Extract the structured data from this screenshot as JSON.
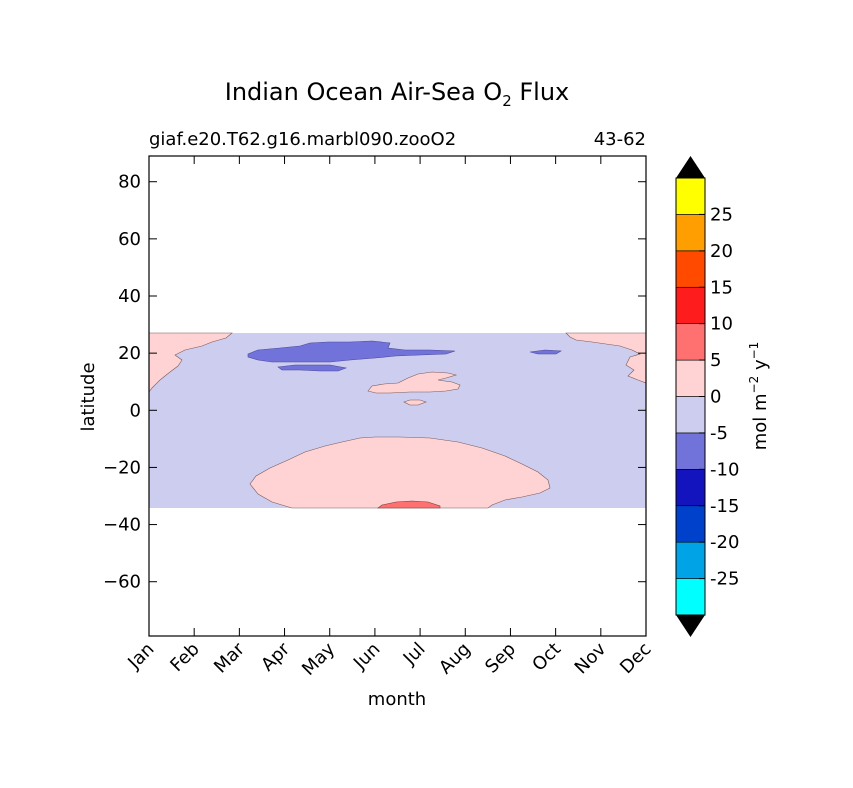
{
  "chart_data": {
    "type": "contourf",
    "title_main": "Indian Ocean Air-Sea O",
    "title_sub": "2",
    "title_end": " Flux",
    "subtitle_left": "giaf.e20.T62.g16.marbl090.zooO2",
    "subtitle_right": "43-62",
    "xlabel": "month",
    "ylabel": "latitude",
    "x_ticks": [
      "Jan",
      "Feb",
      "Mar",
      "Apr",
      "May",
      "Jun",
      "Jul",
      "Aug",
      "Sep",
      "Oct",
      "Nov",
      "Dec"
    ],
    "y_ticks": [
      80,
      60,
      40,
      20,
      0,
      -20,
      -40,
      -60
    ],
    "y_tick_labels": [
      "80",
      "60",
      "40",
      "20",
      "0",
      "−20",
      "−40",
      "−60"
    ],
    "ylim": [
      -79,
      89
    ],
    "xlim": [
      0,
      11
    ],
    "data_lat_range": [
      -34,
      27.5
    ],
    "colorbar": {
      "label_main": "mol m",
      "label_exp1": "−2",
      "label_mid": "  y",
      "label_exp2": "−1",
      "levels": [
        -30,
        -25,
        -20,
        -15,
        -10,
        -5,
        0,
        5,
        10,
        15,
        20,
        25,
        30
      ],
      "tick_values": [
        -25,
        -20,
        -15,
        -10,
        -5,
        0,
        5,
        10,
        15,
        20,
        25
      ],
      "tick_labels": [
        "-25",
        "-20",
        "-15",
        "-10",
        "-5",
        "0",
        "5",
        "10",
        "15",
        "20",
        "25"
      ],
      "colors": [
        "#00ffff",
        "#00a3e6",
        "#0041cc",
        "#1414be",
        "#7272db",
        "#cdcdef",
        "#ffd3d3",
        "#ff7070",
        "#ff1c1c",
        "#ff4a00",
        "#ff9e00",
        "#ffff00"
      ],
      "extend": "both",
      "extend_color": "#000000"
    },
    "regions": [
      {
        "level": "-5 to 0",
        "color": "#cdcdef",
        "description": "background"
      },
      {
        "level": "0 to 5",
        "color": "#ffd3d3"
      },
      {
        "level": "-10 to -5",
        "color": "#7272db"
      },
      {
        "level": "5 to 10",
        "color": "#ff7070"
      }
    ]
  }
}
